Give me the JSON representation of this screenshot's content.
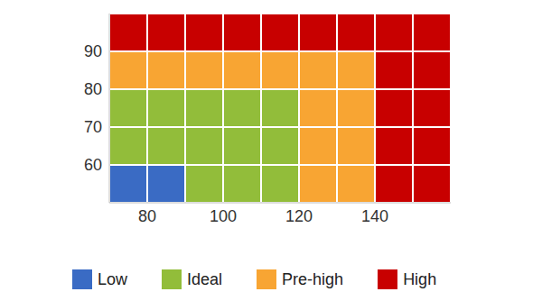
{
  "chart_data": {
    "type": "heatmap",
    "xlim": [
      70,
      160
    ],
    "ylim": [
      50,
      100
    ],
    "xticks": [
      80,
      100,
      120,
      140
    ],
    "yticks": [
      60,
      70,
      80,
      90
    ],
    "xbins": [
      70,
      80,
      90,
      100,
      110,
      120,
      130,
      140,
      150,
      160
    ],
    "ybins": [
      50,
      60,
      70,
      80,
      90,
      100
    ],
    "series": [
      {
        "name": "Low",
        "color": "#3a6bc4"
      },
      {
        "name": "Ideal",
        "color": "#92bd3a"
      },
      {
        "name": "Pre-high",
        "color": "#f8a533"
      },
      {
        "name": "High",
        "color": "#c80000"
      }
    ],
    "cells": [
      [
        0,
        0,
        1,
        1,
        1,
        2,
        2,
        3,
        3
      ],
      [
        1,
        1,
        1,
        1,
        1,
        2,
        2,
        3,
        3
      ],
      [
        1,
        1,
        1,
        1,
        1,
        2,
        2,
        3,
        3
      ],
      [
        2,
        2,
        2,
        2,
        2,
        2,
        2,
        3,
        3
      ],
      [
        3,
        3,
        3,
        3,
        3,
        3,
        3,
        3,
        3
      ]
    ],
    "legend": "bottom"
  }
}
